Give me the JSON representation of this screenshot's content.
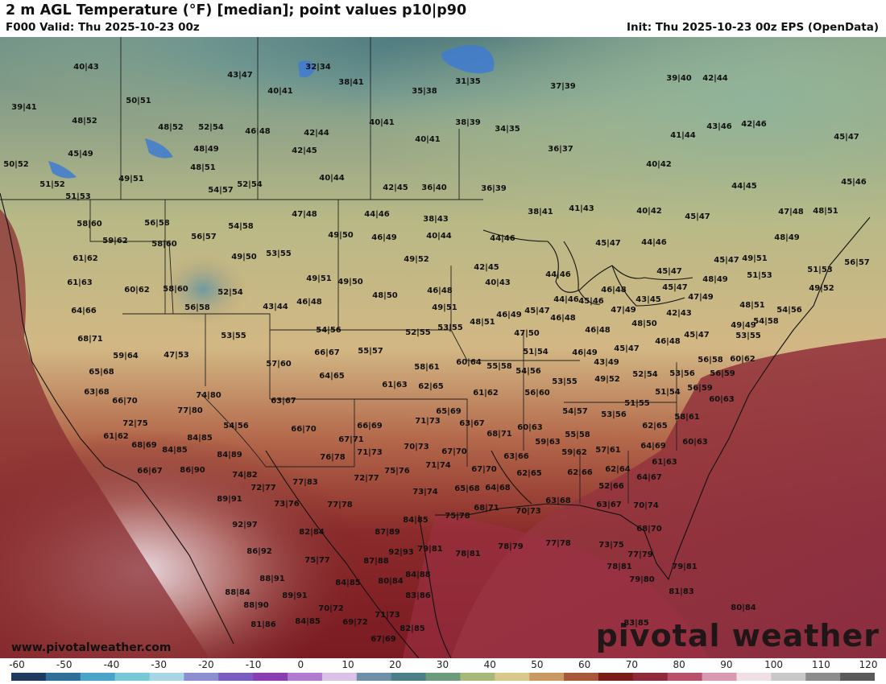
{
  "header": {
    "title": "2 m AGL Temperature (°F) [median]; point values p10|p90",
    "valid": "F000 Valid: Thu 2025-10-23 00z",
    "init": "Init: Thu 2025-10-23 00z EPS (OpenData)"
  },
  "footer": {
    "url": "www.pivotalweather.com",
    "brand": "pivotal weather"
  },
  "colorbar": {
    "ticks": [
      "-60",
      "-50",
      "-40",
      "-30",
      "-20",
      "-10",
      "0",
      "10",
      "20",
      "30",
      "40",
      "50",
      "60",
      "70",
      "80",
      "90",
      "100",
      "110",
      "120"
    ],
    "colors": [
      "#1e3a5f",
      "#2f6f9a",
      "#4aa3c8",
      "#78c9d6",
      "#a9d6e6",
      "#8b8fd0",
      "#7a5bbf",
      "#8a3fb0",
      "#b07ad0",
      "#d9c2e6",
      "#6f8fa8",
      "#4c7e86",
      "#6b9b7a",
      "#a7b87a",
      "#d8c98a",
      "#c89a62",
      "#a8583a",
      "#7a1e1a",
      "#8f2a3a",
      "#b8506a",
      "#d79ab0",
      "#efe0e6",
      "#c8c8c8",
      "#8c8c8c",
      "#5a5a5a"
    ]
  },
  "points": [
    [
      "40|43",
      107,
      82
    ],
    [
      "43|47",
      298,
      92
    ],
    [
      "32|34",
      395,
      82
    ],
    [
      "38|41",
      436,
      101
    ],
    [
      "35|38",
      527,
      112
    ],
    [
      "31|35",
      581,
      100
    ],
    [
      "37|39",
      699,
      106
    ],
    [
      "39|40",
      843,
      96
    ],
    [
      "42|44",
      888,
      96
    ],
    [
      "39|41",
      30,
      132
    ],
    [
      "50|51",
      172,
      124
    ],
    [
      "40|41",
      348,
      112
    ],
    [
      "48|52",
      105,
      149
    ],
    [
      "48|52",
      212,
      157
    ],
    [
      "52|54",
      262,
      157
    ],
    [
      "46|48",
      320,
      162
    ],
    [
      "42|44",
      393,
      164
    ],
    [
      "40|41",
      474,
      151
    ],
    [
      "38|39",
      581,
      151
    ],
    [
      "34|35",
      630,
      159
    ],
    [
      "43|46",
      893,
      156
    ],
    [
      "42|46",
      936,
      153
    ],
    [
      "41|44",
      848,
      167
    ],
    [
      "45|47",
      1051,
      169
    ],
    [
      "45|49",
      100,
      190
    ],
    [
      "48|49",
      256,
      184
    ],
    [
      "42|45",
      378,
      186
    ],
    [
      "40|41",
      531,
      172
    ],
    [
      "36|37",
      696,
      184
    ],
    [
      "50|52",
      20,
      203
    ],
    [
      "48|51",
      252,
      207
    ],
    [
      "40|44",
      412,
      220
    ],
    [
      "40|42",
      818,
      203
    ],
    [
      "49|51",
      163,
      221
    ],
    [
      "54|57",
      274,
      235
    ],
    [
      "52|54",
      310,
      228
    ],
    [
      "42|45",
      491,
      232
    ],
    [
      "36|40",
      539,
      232
    ],
    [
      "36|39",
      613,
      233
    ],
    [
      "44|45",
      924,
      230
    ],
    [
      "45|46",
      1060,
      225
    ],
    [
      "51|52",
      65,
      228
    ],
    [
      "51|53",
      97,
      243
    ],
    [
      "47|48",
      378,
      265
    ],
    [
      "44|46",
      468,
      265
    ],
    [
      "38|43",
      541,
      271
    ],
    [
      "38|41",
      671,
      262
    ],
    [
      "41|43",
      722,
      258
    ],
    [
      "40|42",
      806,
      261
    ],
    [
      "45|47",
      866,
      268
    ],
    [
      "47|48",
      982,
      262
    ],
    [
      "48|51",
      1025,
      261
    ],
    [
      "58|60",
      111,
      277
    ],
    [
      "56|58",
      195,
      276
    ],
    [
      "56|57",
      253,
      293
    ],
    [
      "54|58",
      299,
      280
    ],
    [
      "49|50",
      423,
      291
    ],
    [
      "46|49",
      477,
      294
    ],
    [
      "40|44",
      545,
      292
    ],
    [
      "44|46",
      624,
      295
    ],
    [
      "45|47",
      755,
      301
    ],
    [
      "44|46",
      812,
      300
    ],
    [
      "48|49",
      977,
      294
    ],
    [
      "59|62",
      143,
      298
    ],
    [
      "58|60",
      204,
      302
    ],
    [
      "49|50",
      303,
      318
    ],
    [
      "53|55",
      346,
      314
    ],
    [
      "49|52",
      517,
      321
    ],
    [
      "42|45",
      604,
      331
    ],
    [
      "45|47",
      902,
      322
    ],
    [
      "49|51",
      937,
      320
    ],
    [
      "51|53",
      943,
      341
    ],
    [
      "51|53",
      1018,
      334
    ],
    [
      "56|57",
      1064,
      325
    ],
    [
      "61|62",
      106,
      320
    ],
    [
      "44|46",
      693,
      340
    ],
    [
      "45|47",
      831,
      336
    ],
    [
      "48|49",
      888,
      346
    ],
    [
      "40|43",
      618,
      350
    ],
    [
      "61|63",
      99,
      350
    ],
    [
      "60|62",
      170,
      359
    ],
    [
      "58|60",
      218,
      358
    ],
    [
      "52|54",
      286,
      362
    ],
    [
      "49|51",
      396,
      345
    ],
    [
      "49|50",
      435,
      349
    ],
    [
      "48|50",
      478,
      366
    ],
    [
      "46|48",
      546,
      360
    ],
    [
      "46|48",
      762,
      359
    ],
    [
      "45|47",
      838,
      356
    ],
    [
      "47|49",
      870,
      368
    ],
    [
      "49|52",
      1020,
      357
    ],
    [
      "44|46",
      703,
      371
    ],
    [
      "45|46",
      734,
      373
    ],
    [
      "43|45",
      805,
      371
    ],
    [
      "64|66",
      104,
      385
    ],
    [
      "56|58",
      245,
      381
    ],
    [
      "43|44",
      342,
      380
    ],
    [
      "46|48",
      384,
      374
    ],
    [
      "49|51",
      552,
      381
    ],
    [
      "47|49",
      774,
      384
    ],
    [
      "42|43",
      843,
      388
    ],
    [
      "48|51",
      934,
      378
    ],
    [
      "54|56",
      980,
      384
    ],
    [
      "48|51",
      599,
      399
    ],
    [
      "46|49",
      632,
      390
    ],
    [
      "45|47",
      667,
      385
    ],
    [
      "46|48",
      699,
      394
    ],
    [
      "48|50",
      800,
      401
    ],
    [
      "54|58",
      951,
      398
    ],
    [
      "53|55",
      290,
      416
    ],
    [
      "52|55",
      519,
      412
    ],
    [
      "53|55",
      559,
      406
    ],
    [
      "54|56",
      408,
      409
    ],
    [
      "47|50",
      654,
      413
    ],
    [
      "46|48",
      742,
      409
    ],
    [
      "49|49",
      923,
      403
    ],
    [
      "45|47",
      865,
      415
    ],
    [
      "53|55",
      929,
      416
    ],
    [
      "46|48",
      829,
      423
    ],
    [
      "47|53",
      219,
      440
    ],
    [
      "68|71",
      112,
      420
    ],
    [
      "66|67",
      406,
      437
    ],
    [
      "55|57",
      460,
      435
    ],
    [
      "51|54",
      665,
      436
    ],
    [
      "46|49",
      726,
      437
    ],
    [
      "45|47",
      778,
      432
    ],
    [
      "59|64",
      156,
      441
    ],
    [
      "56|58",
      882,
      446
    ],
    [
      "60|62",
      922,
      445
    ],
    [
      "57|60",
      346,
      451
    ],
    [
      "58|61",
      530,
      455
    ],
    [
      "60|64",
      582,
      449
    ],
    [
      "55|58",
      620,
      454
    ],
    [
      "54|56",
      656,
      460
    ],
    [
      "49|52",
      754,
      470
    ],
    [
      "43|49",
      753,
      449
    ],
    [
      "64|65",
      412,
      466
    ],
    [
      "52|54",
      801,
      464
    ],
    [
      "53|56",
      847,
      463
    ],
    [
      "56|59",
      897,
      463
    ],
    [
      "65|68",
      126,
      461
    ],
    [
      "56|59",
      869,
      481
    ],
    [
      "51|54",
      829,
      486
    ],
    [
      "61|63",
      490,
      477
    ],
    [
      "62|65",
      535,
      479
    ],
    [
      "53|55",
      701,
      473
    ],
    [
      "63|68",
      120,
      486
    ],
    [
      "74|80",
      259,
      490
    ],
    [
      "63|67",
      352,
      497
    ],
    [
      "61|62",
      603,
      487
    ],
    [
      "56|60",
      667,
      487
    ],
    [
      "51|55",
      791,
      500
    ],
    [
      "60|63",
      896,
      495
    ],
    [
      "66|70",
      155,
      497
    ],
    [
      "77|80",
      236,
      509
    ],
    [
      "65|69",
      557,
      510
    ],
    [
      "54|57",
      714,
      510
    ],
    [
      "53|56",
      762,
      514
    ],
    [
      "58|61",
      853,
      517
    ],
    [
      "54|56",
      293,
      528
    ],
    [
      "66|70",
      377,
      532
    ],
    [
      "66|69",
      459,
      528
    ],
    [
      "71|73",
      531,
      522
    ],
    [
      "63|67",
      586,
      525
    ],
    [
      "60|63",
      658,
      530
    ],
    [
      "62|65",
      813,
      528
    ],
    [
      "72|75",
      168,
      525
    ],
    [
      "61|62",
      144,
      541
    ],
    [
      "84|85",
      248,
      543
    ],
    [
      "67|71",
      436,
      545
    ],
    [
      "68|71",
      620,
      538
    ],
    [
      "55|58",
      717,
      539
    ],
    [
      "59|63",
      680,
      548
    ],
    [
      "64|69",
      811,
      553
    ],
    [
      "60|63",
      863,
      548
    ],
    [
      "68|69",
      179,
      552
    ],
    [
      "84|85",
      217,
      558
    ],
    [
      "70|73",
      517,
      554
    ],
    [
      "67|70",
      564,
      560
    ],
    [
      "57|61",
      755,
      558
    ],
    [
      "59|62",
      713,
      561
    ],
    [
      "71|73",
      459,
      561
    ],
    [
      "76|78",
      413,
      567
    ],
    [
      "63|66",
      641,
      566
    ],
    [
      "61|63",
      825,
      573
    ],
    [
      "84|89",
      285,
      564
    ],
    [
      "66|67",
      186,
      584
    ],
    [
      "86|90",
      239,
      583
    ],
    [
      "74|82",
      304,
      589
    ],
    [
      "72|77",
      455,
      593
    ],
    [
      "77|83",
      379,
      598
    ],
    [
      "71|74",
      544,
      577
    ],
    [
      "75|76",
      493,
      584
    ],
    [
      "67|70",
      601,
      582
    ],
    [
      "62|65",
      657,
      587
    ],
    [
      "62|66",
      720,
      586
    ],
    [
      "62|64",
      767,
      582
    ],
    [
      "64|67",
      806,
      592
    ],
    [
      "72|77",
      327,
      605
    ],
    [
      "73|74",
      528,
      610
    ],
    [
      "65|68",
      580,
      606
    ],
    [
      "64|68",
      618,
      605
    ],
    [
      "52|66",
      759,
      603
    ],
    [
      "89|91",
      285,
      619
    ],
    [
      "73|76",
      356,
      625
    ],
    [
      "77|78",
      422,
      626
    ],
    [
      "63|68",
      693,
      621
    ],
    [
      "63|67",
      756,
      626
    ],
    [
      "70|74",
      802,
      627
    ],
    [
      "75|78",
      568,
      640
    ],
    [
      "68|71",
      604,
      630
    ],
    [
      "70|73",
      656,
      634
    ],
    [
      "84|85",
      516,
      645
    ],
    [
      "92|97",
      304,
      651
    ],
    [
      "82|84",
      387,
      660
    ],
    [
      "87|89",
      481,
      660
    ],
    [
      "68|70",
      806,
      656
    ],
    [
      "79|81",
      534,
      681
    ],
    [
      "78|81",
      581,
      687
    ],
    [
      "78|79",
      634,
      678
    ],
    [
      "77|78",
      693,
      674
    ],
    [
      "73|75",
      759,
      676
    ],
    [
      "77|79",
      795,
      688
    ],
    [
      "86|92",
      322,
      684
    ],
    [
      "75|77",
      394,
      695
    ],
    [
      "87|88",
      467,
      696
    ],
    [
      "92|93",
      498,
      685
    ],
    [
      "78|81",
      769,
      703
    ],
    [
      "79|81",
      850,
      703
    ],
    [
      "84|88",
      519,
      713
    ],
    [
      "84|85",
      432,
      723
    ],
    [
      "80|84",
      485,
      721
    ],
    [
      "79|80",
      797,
      719
    ],
    [
      "88|91",
      338,
      718
    ],
    [
      "88|84",
      295,
      735
    ],
    [
      "89|91",
      366,
      739
    ],
    [
      "83|86",
      519,
      739
    ],
    [
      "81|83",
      846,
      734
    ],
    [
      "88|90",
      318,
      751
    ],
    [
      "70|72",
      411,
      755
    ],
    [
      "80|84",
      923,
      754
    ],
    [
      "71|73",
      481,
      763
    ],
    [
      "84|85",
      382,
      771
    ],
    [
      "69|72",
      441,
      772
    ],
    [
      "82|85",
      512,
      780
    ],
    [
      "81|86",
      327,
      775
    ],
    [
      "83|85",
      790,
      773
    ],
    [
      "67|69",
      476,
      793
    ]
  ]
}
